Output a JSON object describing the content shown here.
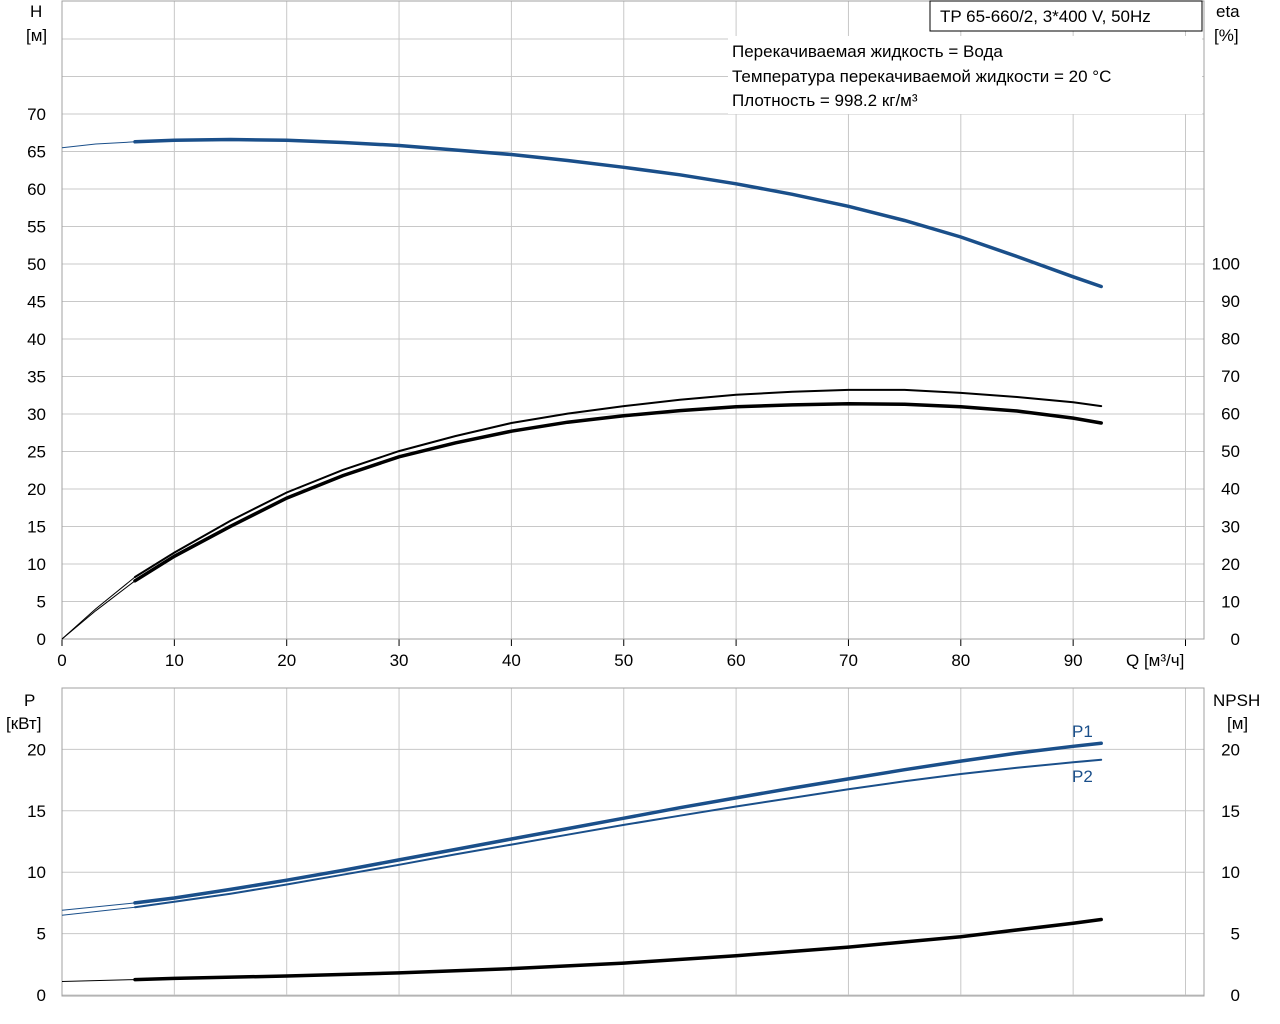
{
  "chart_data": [
    {
      "type": "line",
      "title": "TP 65-660/2, 3*400 V, 50Hz",
      "annotations": [
        "Перекачиваемая жидкость = Вода",
        "Температура перекачиваемой жидкости = 20 °C",
        "Плотность = 998.2 кг/м³"
      ],
      "xlabel": "Q [м³/ч]",
      "ylabel_left": [
        "H",
        "[м]"
      ],
      "ylabel_right": [
        "eta",
        "[%]"
      ],
      "xlim": [
        0,
        100
      ],
      "ylim_left": [
        0,
        70
      ],
      "ylim_right": [
        0,
        100
      ],
      "x_ticks": [
        0,
        10,
        20,
        30,
        40,
        50,
        60,
        70,
        80,
        90
      ],
      "y_ticks_left": [
        0,
        5,
        10,
        15,
        20,
        25,
        30,
        35,
        40,
        45,
        50,
        55,
        60,
        65,
        70
      ],
      "y_ticks_right": [
        0,
        10,
        20,
        30,
        40,
        50,
        60,
        70,
        80,
        90,
        100
      ],
      "grid": true,
      "colors": {
        "head": "#1a4f8a",
        "eta": "#000000"
      },
      "series": [
        {
          "axis": "left",
          "color": "#1a4f8a",
          "extrapolated_x": [
            0,
            3,
            6.5
          ],
          "extrapolated_y": [
            65.5,
            66.0,
            66.3
          ],
          "x": [
            6.5,
            10,
            15,
            20,
            25,
            30,
            35,
            40,
            45,
            50,
            55,
            60,
            65,
            70,
            75,
            80,
            85,
            90,
            92.5
          ],
          "y": [
            66.3,
            66.5,
            66.6,
            66.5,
            66.2,
            65.8,
            65.2,
            64.6,
            63.8,
            62.9,
            61.9,
            60.7,
            59.3,
            57.7,
            55.8,
            53.6,
            51.0,
            48.3,
            47.0
          ]
        },
        {
          "axis": "right",
          "color": "#000000",
          "extrapolated_x": [
            0,
            3,
            6.5
          ],
          "extrapolated_y": [
            0,
            8,
            16.5
          ],
          "x": [
            6.5,
            10,
            15,
            20,
            25,
            30,
            35,
            40,
            45,
            50,
            55,
            60,
            65,
            70,
            75,
            80,
            85,
            90,
            92.5
          ],
          "y": [
            16.5,
            23,
            31.5,
            39,
            45,
            50,
            54,
            57.5,
            60,
            62,
            63.7,
            65.0,
            65.8,
            66.3,
            66.3,
            65.5,
            64.4,
            63.0,
            62.0
          ]
        },
        {
          "axis": "right",
          "color": "#000000",
          "extrapolated_x": [
            0,
            3,
            6.5
          ],
          "extrapolated_y": [
            0,
            7.5,
            15.5
          ],
          "x": [
            6.5,
            10,
            15,
            20,
            25,
            30,
            35,
            40,
            45,
            50,
            55,
            60,
            65,
            70,
            75,
            80,
            85,
            90,
            92.5
          ],
          "y": [
            15.5,
            22,
            30,
            37.5,
            43.5,
            48.5,
            52.2,
            55.3,
            57.7,
            59.4,
            60.8,
            61.8,
            62.3,
            62.6,
            62.5,
            61.8,
            60.7,
            58.8,
            57.5
          ]
        }
      ]
    },
    {
      "type": "line",
      "ylabel_left": [
        "P",
        "[кВт]"
      ],
      "ylabel_right": [
        "NPSH",
        "[м]"
      ],
      "xlim": [
        0,
        100
      ],
      "ylim_left": [
        0,
        23.5
      ],
      "ylim_right": [
        0,
        23.5
      ],
      "y_ticks_left": [
        0,
        5,
        10,
        15,
        20
      ],
      "y_ticks_right": [
        0,
        5,
        10,
        15,
        20
      ],
      "grid": true,
      "colors": {
        "power": "#1a4f8a",
        "npsh": "#000000"
      },
      "series": [
        {
          "name": "P1",
          "axis": "left",
          "color": "#1a4f8a",
          "extrapolated_x": [
            0,
            6.5
          ],
          "extrapolated_y": [
            6.9,
            7.5
          ],
          "x": [
            6.5,
            10,
            15,
            20,
            25,
            30,
            35,
            40,
            45,
            50,
            55,
            60,
            65,
            70,
            75,
            80,
            85,
            90,
            92.5
          ],
          "y": [
            7.5,
            7.9,
            8.6,
            9.35,
            10.15,
            11.0,
            11.85,
            12.7,
            13.55,
            14.4,
            15.25,
            16.05,
            16.85,
            17.6,
            18.35,
            19.05,
            19.7,
            20.25,
            20.5
          ]
        },
        {
          "name": "P2",
          "axis": "left",
          "color": "#1a4f8a",
          "extrapolated_x": [
            0,
            6.5
          ],
          "extrapolated_y": [
            6.5,
            7.15
          ],
          "x": [
            6.5,
            10,
            15,
            20,
            25,
            30,
            35,
            40,
            45,
            50,
            55,
            60,
            65,
            70,
            75,
            80,
            85,
            90,
            92.5
          ],
          "y": [
            7.15,
            7.6,
            8.25,
            9.0,
            9.8,
            10.6,
            11.45,
            12.25,
            13.05,
            13.85,
            14.6,
            15.35,
            16.05,
            16.75,
            17.4,
            18.0,
            18.5,
            18.95,
            19.15
          ]
        },
        {
          "axis": "right",
          "color": "#000000",
          "extrapolated_x": [
            0,
            6.5
          ],
          "extrapolated_y": [
            1.1,
            1.25
          ],
          "x": [
            6.5,
            10,
            20,
            30,
            40,
            50,
            60,
            70,
            80,
            90,
            92.5
          ],
          "y": [
            1.25,
            1.35,
            1.55,
            1.8,
            2.15,
            2.6,
            3.2,
            3.9,
            4.75,
            5.85,
            6.15
          ]
        }
      ]
    }
  ]
}
